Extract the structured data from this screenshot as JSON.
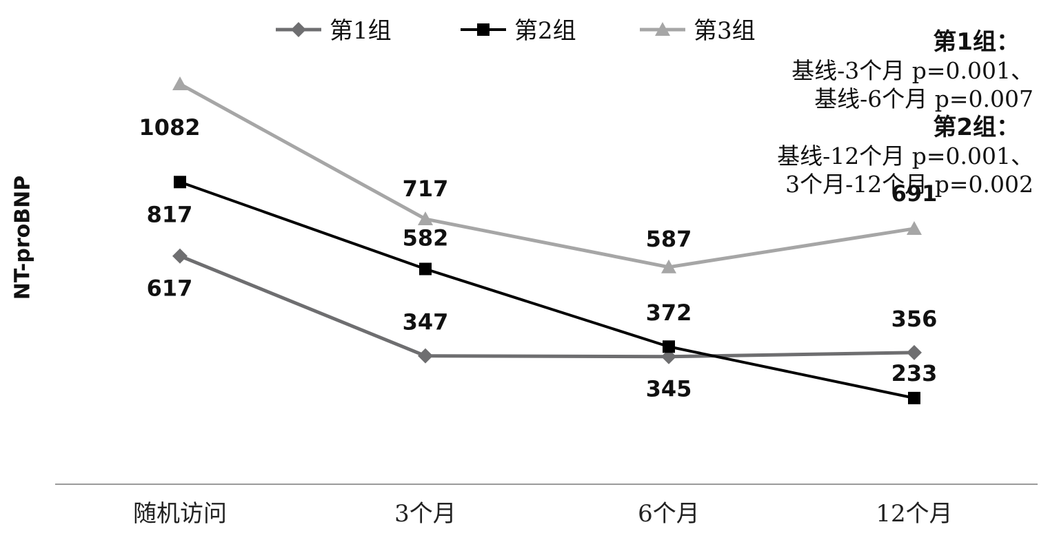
{
  "chart_data": {
    "type": "line",
    "title": "",
    "ylabel": "NT-proBNP",
    "xlabel": "",
    "categories": [
      "随机访问",
      "3个月",
      "6个月",
      "12个月"
    ],
    "series": [
      {
        "name": "第1组",
        "values": [
          617,
          347,
          345,
          356
        ],
        "color": "#6e6e70",
        "marker": "diamond"
      },
      {
        "name": "第2组",
        "values": [
          817,
          582,
          372,
          233
        ],
        "color": "#000000",
        "marker": "square"
      },
      {
        "name": "第3组",
        "values": [
          1082,
          717,
          587,
          691
        ],
        "color": "#a6a6a6",
        "marker": "triangle"
      }
    ],
    "legend": "top-center",
    "grid": false,
    "annotations": [
      {
        "heading": "第1组：",
        "lines": [
          "基线-3个月 p=0.001、",
          "基线-6个月 p=0.007"
        ]
      },
      {
        "heading": "第2组：",
        "lines": [
          "基线-12个月 p=0.001、",
          "3个月-12个月 p=0.002"
        ]
      }
    ]
  }
}
